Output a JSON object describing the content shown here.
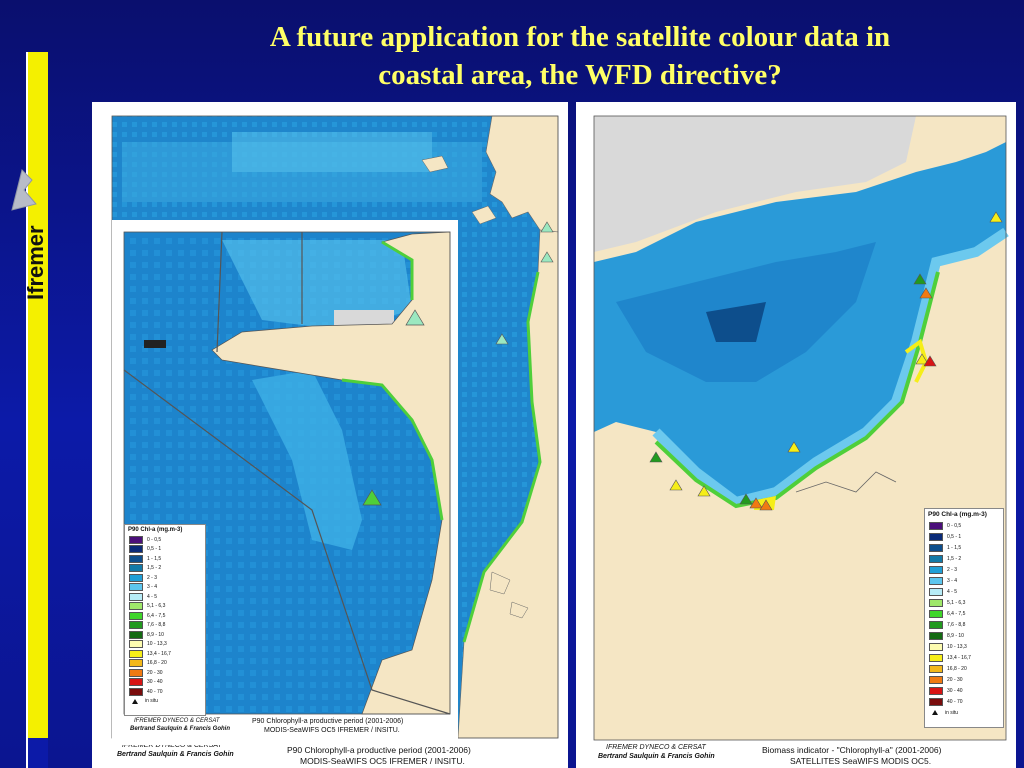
{
  "title": {
    "line1": "A future application for the satellite colour data in",
    "line2": "coastal area, the WFD directive?"
  },
  "logo": {
    "text": "Ifremer",
    "bar_color": "#f4f000"
  },
  "left_map": {
    "credit_line1": "IFREMER DYNECO & CERSAT",
    "credit_line2": "Bertrand Saulquin & Francis Gohin",
    "caption_line1": "P90 Chlorophyll-a productive period  (2001-2006)",
    "caption_line2": "MODIS-SeaWIFS OC5 IFREMER / INSITU."
  },
  "inset_map": {
    "credit_line1": "IFREMER DYNECO & CERSAT",
    "credit_line2": "Bertrand Saulquin & Francis Gohin",
    "caption_line1": "P90 Chlorophyll-a productive period  (2001-2006)",
    "caption_line2": "MODIS-SeaWIFS OC5 IFREMER / INSITU."
  },
  "right_map": {
    "credit_line1": "IFREMER DYNECO & CERSAT",
    "credit_line2": "Bertrand Saulquin & Francis Gohin",
    "caption_line1": "Biomass indicator - \"Chlorophyll-a\"  (2001-2006)",
    "caption_line2": "SATELLITES  SeaWIFS MODIS OC5."
  },
  "legend_small": {
    "title": "P90 Chl-a (mg.m-3)",
    "items": [
      {
        "label": "0 - 0,5",
        "color": "#4b0f7a"
      },
      {
        "label": "0,5 - 1",
        "color": "#0a2a78"
      },
      {
        "label": "1 - 1,5",
        "color": "#0d4e8c"
      },
      {
        "label": "1,5 - 2",
        "color": "#127aa8"
      },
      {
        "label": "2 - 3",
        "color": "#1f9fd6"
      },
      {
        "label": "3 - 4",
        "color": "#5cc6ee"
      },
      {
        "label": "4 - 5",
        "color": "#b7ecf7"
      },
      {
        "label": "5,1 - 6,3",
        "color": "#9fe86a"
      },
      {
        "label": "6,4 - 7,5",
        "color": "#3fd62a"
      },
      {
        "label": "7,6 - 8,8",
        "color": "#229a1f"
      },
      {
        "label": "8,9 - 10",
        "color": "#136b12"
      },
      {
        "label": "10 - 13,3",
        "color": "#fdfcb0"
      },
      {
        "label": "13,4 - 16,7",
        "color": "#f6ee18"
      },
      {
        "label": "16,8 - 20",
        "color": "#f3b81a"
      },
      {
        "label": "20 - 30",
        "color": "#f07a12"
      },
      {
        "label": "30 - 40",
        "color": "#d81414"
      },
      {
        "label": "40 - 70",
        "color": "#7a0c0c"
      }
    ],
    "insitu_label": "in situ"
  },
  "legend_large": {
    "title": "P90 Chl-a (mg.m-3)",
    "items": [
      {
        "label": "0 - 0,5",
        "color": "#4b0f7a"
      },
      {
        "label": "0,5 - 1",
        "color": "#0a2a78"
      },
      {
        "label": "1 - 1,5",
        "color": "#0d4e8c"
      },
      {
        "label": "1,5 - 2",
        "color": "#127aa8"
      },
      {
        "label": "2 - 3",
        "color": "#1f9fd6"
      },
      {
        "label": "3 - 4",
        "color": "#5cc6ee"
      },
      {
        "label": "4 - 5",
        "color": "#b7ecf7"
      },
      {
        "label": "5,1 - 6,3",
        "color": "#9fe86a"
      },
      {
        "label": "6,4 - 7,5",
        "color": "#3fd62a"
      },
      {
        "label": "7,6 - 8,8",
        "color": "#229a1f"
      },
      {
        "label": "8,9 - 10",
        "color": "#136b12"
      },
      {
        "label": "10 - 13,3",
        "color": "#fdfcb0"
      },
      {
        "label": "13,4 - 16,7",
        "color": "#f6ee18"
      },
      {
        "label": "16,8 - 20",
        "color": "#f3b81a"
      },
      {
        "label": "20 - 30",
        "color": "#f07a12"
      },
      {
        "label": "30 - 40",
        "color": "#d81414"
      },
      {
        "label": "40 - 70",
        "color": "#7a0c0c"
      }
    ],
    "insitu_label": "in situ"
  },
  "colors": {
    "land": "#f5e6c4",
    "sea_deep": "#1f7fc4",
    "sea_mid": "#2a9ad8",
    "sea_light": "#6cc9ee",
    "cloud": "#d9d9d9"
  }
}
